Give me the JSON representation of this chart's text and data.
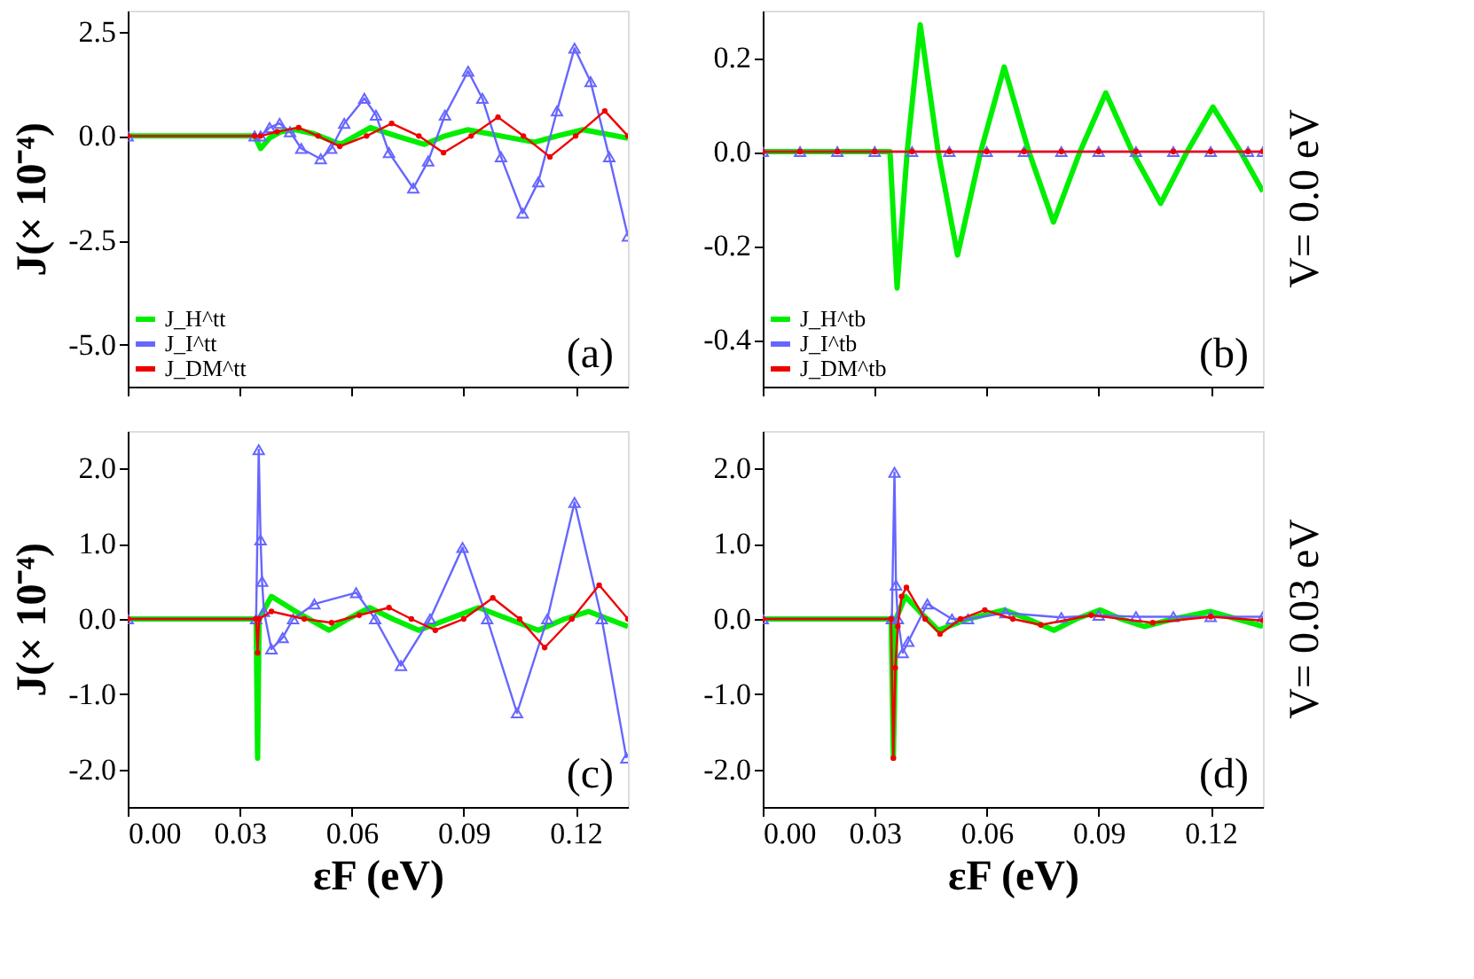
{
  "chart_data": [
    {
      "type": "line",
      "ylabel": "J(× 10⁻⁴)",
      "annotations": [
        "(a)"
      ],
      "legend": "bottom left",
      "tick_labels": "y",
      "grid": false,
      "xlim": [
        0,
        0.134
      ],
      "xticks": [
        {
          "value": 0,
          "label": null
        },
        {
          "value": 0.03,
          "label": null
        },
        {
          "value": 0.06,
          "label": null
        },
        {
          "value": 0.09,
          "label": null
        },
        {
          "value": 0.12,
          "label": null
        }
      ],
      "ylim": [
        -6,
        3
      ],
      "yticks": [
        {
          "value": -5,
          "label": "-5.0"
        },
        {
          "value": -2.5,
          "label": "-2.5"
        },
        {
          "value": 0,
          "label": "0.0"
        },
        {
          "value": 2.5,
          "label": "2.5"
        }
      ],
      "series": [
        {
          "name": "J_H^tt",
          "color": "#00ee00",
          "marker": "none",
          "x": [
            0,
            0.034,
            0.0356,
            0.038,
            0.041,
            0.045,
            0.05,
            0.057,
            0.061,
            0.065,
            0.072,
            0.0795,
            0.085,
            0.091,
            0.1,
            0.109,
            0.115,
            0.122,
            0.128,
            0.134
          ],
          "values": [
            0,
            0,
            -0.3,
            -0.05,
            0.1,
            0.15,
            0.05,
            -0.2,
            0,
            0.2,
            0,
            -0.2,
            0,
            0.15,
            0,
            -0.15,
            0,
            0.15,
            0.05,
            -0.05
          ]
        },
        {
          "name": "J_I^tt",
          "color": "#6666ff",
          "marker": "triangle",
          "x": [
            0,
            0.034,
            0.0356,
            0.038,
            0.0407,
            0.0435,
            0.0465,
            0.0517,
            0.0545,
            0.058,
            0.0634,
            0.0665,
            0.07,
            0.0765,
            0.0805,
            0.085,
            0.0912,
            0.095,
            0.1,
            0.1058,
            0.11,
            0.115,
            0.1197,
            0.124,
            0.129,
            0.134
          ],
          "values": [
            0,
            0,
            0,
            0.2,
            0.3,
            0.1,
            -0.3,
            -0.55,
            -0.3,
            0.3,
            0.9,
            0.5,
            -0.4,
            -1.25,
            -0.6,
            0.5,
            1.55,
            0.9,
            -0.5,
            -1.85,
            -1.1,
            0.6,
            2.1,
            1.3,
            -0.5,
            -2.4
          ]
        },
        {
          "name": "J_DM^tt",
          "color": "#ee0000",
          "marker": "circle",
          "x": [
            0,
            0.034,
            0.0356,
            0.04,
            0.0458,
            0.051,
            0.0568,
            0.064,
            0.0707,
            0.078,
            0.0846,
            0.092,
            0.0992,
            0.106,
            0.1131,
            0.12,
            0.1278,
            0.134
          ],
          "values": [
            0,
            0,
            0,
            0.1,
            0.2,
            0,
            -0.25,
            0,
            0.3,
            0,
            -0.4,
            0,
            0.45,
            0,
            -0.5,
            0,
            0.6,
            0
          ]
        }
      ]
    },
    {
      "type": "line",
      "y2label": "V= 0.0 eV",
      "annotations": [
        "(b)"
      ],
      "legend": "bottom left",
      "tick_labels": "y",
      "grid": false,
      "xlim": [
        0,
        0.134
      ],
      "xticks": [
        {
          "value": 0,
          "label": null
        },
        {
          "value": 0.03,
          "label": null
        },
        {
          "value": 0.06,
          "label": null
        },
        {
          "value": 0.09,
          "label": null
        },
        {
          "value": 0.12,
          "label": null
        }
      ],
      "ylim": [
        -0.5,
        0.3
      ],
      "yticks": [
        {
          "value": -0.4,
          "label": "-0.4"
        },
        {
          "value": -0.2,
          "label": "-0.2"
        },
        {
          "value": 0,
          "label": "0.0"
        },
        {
          "value": 0.2,
          "label": "0.2"
        }
      ],
      "series": [
        {
          "name": "J_H^tb",
          "color": "#00ee00",
          "marker": "none",
          "x": [
            0,
            0.0341,
            0.036,
            0.0387,
            0.0422,
            0.047,
            0.0522,
            0.0584,
            0.0647,
            0.0713,
            0.0779,
            0.085,
            0.0919,
            0.099,
            0.1066,
            0.1137,
            0.1206,
            0.128,
            0.134
          ],
          "values": [
            0,
            0,
            -0.29,
            0,
            0.27,
            0,
            -0.22,
            0,
            0.18,
            0,
            -0.15,
            0,
            0.125,
            0,
            -0.11,
            0,
            0.095,
            0,
            -0.085
          ]
        },
        {
          "name": "J_I^tb",
          "color": "#6666ff",
          "marker": "triangle",
          "x": [
            0,
            0.01,
            0.02,
            0.03,
            0.04,
            0.05,
            0.06,
            0.07,
            0.08,
            0.09,
            0.1,
            0.11,
            0.12,
            0.13,
            0.134
          ],
          "values": [
            0,
            0,
            0,
            0,
            0,
            0,
            0,
            0,
            0,
            0,
            0,
            0,
            0,
            0,
            0
          ]
        },
        {
          "name": "J_DM^tb",
          "color": "#ee0000",
          "marker": "circle",
          "x": [
            0,
            0.01,
            0.02,
            0.03,
            0.04,
            0.05,
            0.06,
            0.07,
            0.08,
            0.09,
            0.1,
            0.11,
            0.12,
            0.13,
            0.134
          ],
          "values": [
            0,
            0,
            0,
            0,
            0,
            0,
            0,
            0,
            0,
            0,
            0,
            0,
            0,
            0,
            0
          ]
        }
      ]
    },
    {
      "type": "line",
      "ylabel": "J(× 10⁻⁴)",
      "xlabel": "εF (eV)",
      "annotations": [
        "(c)"
      ],
      "grid": false,
      "xlim": [
        0,
        0.134
      ],
      "xticks": [
        {
          "value": 0,
          "label": "0.00"
        },
        {
          "value": 0.03,
          "label": "0.03"
        },
        {
          "value": 0.06,
          "label": "0.06"
        },
        {
          "value": 0.09,
          "label": "0.09"
        },
        {
          "value": 0.12,
          "label": "0.12"
        }
      ],
      "ylim": [
        -2.5,
        2.5
      ],
      "yticks": [
        {
          "value": -2,
          "label": "-2.0"
        },
        {
          "value": -1,
          "label": "-1.0"
        },
        {
          "value": 0,
          "label": "0.0"
        },
        {
          "value": 1,
          "label": "1.0"
        },
        {
          "value": 2,
          "label": "2.0"
        }
      ],
      "series": [
        {
          "color": "#00ee00",
          "marker": "none",
          "x": [
            0,
            0.0344,
            0.0348,
            0.0352,
            0.0385,
            0.045,
            0.0539,
            0.059,
            0.0648,
            0.071,
            0.078,
            0.086,
            0.094,
            0.102,
            0.11,
            0.117,
            0.1234,
            0.134
          ],
          "values": [
            0,
            0,
            -1.85,
            0,
            0.3,
            0.1,
            -0.15,
            0,
            0.15,
            0,
            -0.15,
            0,
            0.15,
            0,
            -0.15,
            0,
            0.1,
            -0.1
          ]
        },
        {
          "color": "#6666ff",
          "marker": "triangle",
          "x": [
            0,
            0.0344,
            0.0351,
            0.0356,
            0.036,
            0.0365,
            0.0385,
            0.0415,
            0.0443,
            0.05,
            0.0612,
            0.0663,
            0.0732,
            0.081,
            0.0897,
            0.0963,
            0.1043,
            0.1124,
            0.1197,
            0.127,
            0.1336
          ],
          "values": [
            0,
            0,
            2.25,
            1.05,
            0.5,
            0.1,
            -0.4,
            -0.25,
            0,
            0.2,
            0.35,
            0,
            -0.62,
            0,
            0.95,
            0,
            -1.25,
            0,
            1.55,
            0,
            -1.85
          ]
        },
        {
          "color": "#ee0000",
          "marker": "circle",
          "x": [
            0,
            0.0344,
            0.0348,
            0.0352,
            0.0385,
            0.0473,
            0.0546,
            0.062,
            0.07,
            0.076,
            0.0824,
            0.09,
            0.0978,
            0.105,
            0.1117,
            0.119,
            0.1263,
            0.134
          ],
          "values": [
            0,
            0,
            -0.45,
            0,
            0.1,
            0,
            -0.05,
            0.05,
            0.15,
            0,
            -0.15,
            0,
            0.28,
            0,
            -0.38,
            0,
            0.45,
            0
          ]
        }
      ]
    },
    {
      "type": "line",
      "xlabel": "εF (eV)",
      "y2label": "V= 0.03 eV",
      "annotations": [
        "(d)"
      ],
      "grid": false,
      "xlim": [
        0,
        0.134
      ],
      "xticks": [
        {
          "value": 0,
          "label": "0.00"
        },
        {
          "value": 0.03,
          "label": "0.03"
        },
        {
          "value": 0.06,
          "label": "0.06"
        },
        {
          "value": 0.09,
          "label": "0.09"
        },
        {
          "value": 0.12,
          "label": "0.12"
        }
      ],
      "ylim": [
        -2.5,
        2.5
      ],
      "yticks": [
        {
          "value": -2,
          "label": "-2.0"
        },
        {
          "value": -1,
          "label": "-1.0"
        },
        {
          "value": 0,
          "label": "0.0"
        },
        {
          "value": 1,
          "label": "1.0"
        },
        {
          "value": 2,
          "label": "2.0"
        }
      ],
      "series": [
        {
          "color": "#00ee00",
          "marker": "none",
          "x": [
            0,
            0.0344,
            0.035,
            0.0357,
            0.0382,
            0.042,
            0.047,
            0.055,
            0.0647,
            0.071,
            0.078,
            0.084,
            0.0904,
            0.096,
            0.1022,
            0.11,
            0.12,
            0.127,
            0.134
          ],
          "values": [
            0,
            0,
            -1.85,
            0,
            0.3,
            0.1,
            -0.15,
            0,
            0.12,
            0,
            -0.15,
            0,
            0.12,
            0,
            -0.1,
            0,
            0.1,
            0,
            -0.1
          ]
        },
        {
          "color": "#6666ff",
          "marker": "triangle",
          "x": [
            0,
            0.0346,
            0.0353,
            0.0357,
            0.0362,
            0.0375,
            0.039,
            0.0441,
            0.0507,
            0.055,
            0.065,
            0.08,
            0.09,
            0.1,
            0.11,
            0.12,
            0.134
          ],
          "values": [
            0,
            0,
            1.95,
            0.45,
            0,
            -0.45,
            -0.3,
            0.2,
            0,
            0,
            0.08,
            0.02,
            0.05,
            0.03,
            0.03,
            0.03,
            0.03
          ]
        },
        {
          "color": "#ee0000",
          "marker": "circle",
          "x": [
            0,
            0.0344,
            0.035,
            0.0355,
            0.0362,
            0.0372,
            0.0385,
            0.0435,
            0.0475,
            0.053,
            0.0595,
            0.067,
            0.0745,
            0.088,
            0.1045,
            0.12,
            0.134
          ],
          "values": [
            0,
            0,
            -1.85,
            -0.65,
            -0.1,
            0.3,
            0.42,
            0,
            -0.2,
            0,
            0.12,
            0,
            -0.08,
            0.05,
            -0.05,
            0.03,
            -0.02
          ]
        }
      ]
    }
  ]
}
